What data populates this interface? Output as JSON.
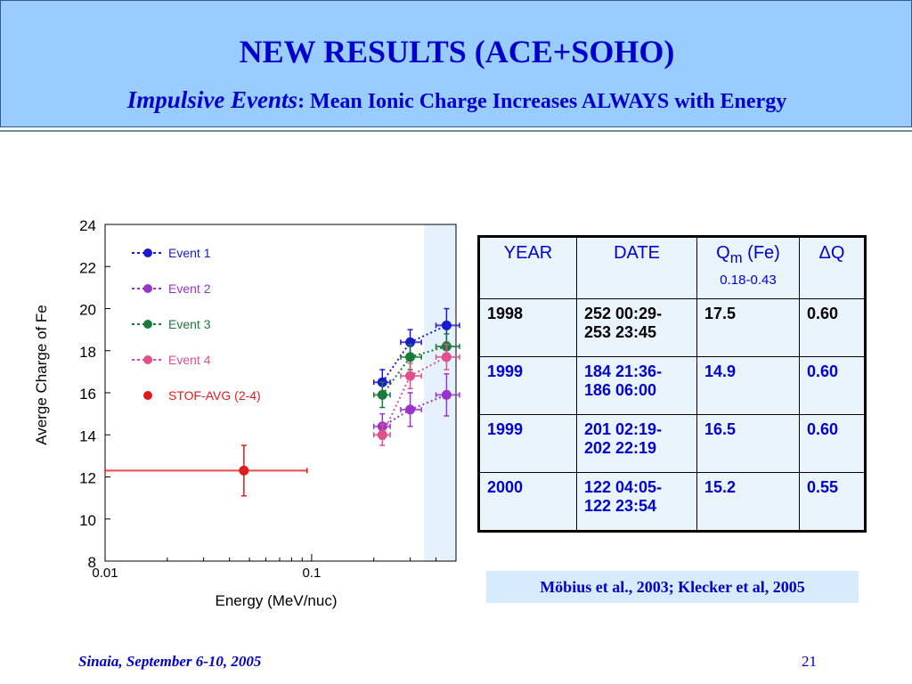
{
  "slide": {
    "title": "NEW RESULTS (ACE+SOHO)",
    "subtitle_italic": "Impulsive Events",
    "subtitle_rest": ": Mean Ionic Charge Increases ALWAYS with Energy",
    "reference": "Möbius et al., 2003; Klecker et al, 2005",
    "footer_left": "Sinaia, September 6-10, 2005",
    "page_number": "21"
  },
  "colors": {
    "header_bg": "#99ccff",
    "title": "#0000cc",
    "event1": "#1a1acc",
    "event2": "#9933cc",
    "event3": "#1a7a3a",
    "event4": "#e0508a",
    "stof": "#e31a1c",
    "table_bg": "#eaf4fd",
    "highlight_band": "#e6f2fb"
  },
  "table": {
    "headers": {
      "year": "YEAR",
      "date": "DATE",
      "qm": "Q",
      "qm_sub": "m",
      "qm_suffix": " (Fe)",
      "qm_range": "0.18-0.43",
      "dq": "ΔQ"
    },
    "rows": [
      {
        "year": "1998",
        "date_line1": "252 00:29-",
        "date_line2": "253 23:45",
        "qm": "17.5",
        "dq": "0.60"
      },
      {
        "year": "1999",
        "date_line1": "184 21:36-",
        "date_line2": "186 06:00",
        "qm": "14.9",
        "dq": "0.60"
      },
      {
        "year": "1999",
        "date_line1": "201 02:19-",
        "date_line2": "202 22:19",
        "qm": "16.5",
        "dq": "0.60"
      },
      {
        "year": "2000",
        "date_line1": "122 04:05-",
        "date_line2": "122 23:54",
        "qm": "15.2",
        "dq": "0.55"
      }
    ]
  },
  "chart_data": {
    "type": "scatter",
    "title": "",
    "xlabel": "Energy (MeV/nuc)",
    "ylabel": "Averge Charge of Fe",
    "x_scale": "log",
    "xlim": [
      0.01,
      0.5
    ],
    "ylim": [
      8,
      24
    ],
    "x_ticks": [
      "0.01",
      "0.1"
    ],
    "y_ticks": [
      "8",
      "10",
      "12",
      "14",
      "16",
      "18",
      "20",
      "22",
      "24"
    ],
    "shaded_x_range": [
      0.35,
      0.5
    ],
    "legend_position": "top-left",
    "series": [
      {
        "name": "Event 1",
        "color": "#1a1acc",
        "connected": true,
        "points": [
          {
            "x": 0.22,
            "y": 16.5,
            "yerr": 0.6,
            "xerr_lo": 0.02,
            "xerr_hi": 0.02
          },
          {
            "x": 0.3,
            "y": 18.4,
            "yerr": 0.6,
            "xerr_lo": 0.03,
            "xerr_hi": 0.04
          },
          {
            "x": 0.45,
            "y": 19.2,
            "yerr": 0.8,
            "xerr_lo": 0.05,
            "xerr_hi": 0.07
          }
        ]
      },
      {
        "name": "Event 2",
        "color": "#9933cc",
        "connected": true,
        "points": [
          {
            "x": 0.22,
            "y": 14.4,
            "yerr": 0.6,
            "xerr_lo": 0.02,
            "xerr_hi": 0.02
          },
          {
            "x": 0.3,
            "y": 15.2,
            "yerr": 0.8,
            "xerr_lo": 0.03,
            "xerr_hi": 0.04
          },
          {
            "x": 0.45,
            "y": 15.9,
            "yerr": 1.0,
            "xerr_lo": 0.05,
            "xerr_hi": 0.07
          }
        ]
      },
      {
        "name": "Event 3",
        "color": "#1a7a3a",
        "connected": true,
        "points": [
          {
            "x": 0.22,
            "y": 15.9,
            "yerr": 0.6,
            "xerr_lo": 0.02,
            "xerr_hi": 0.02
          },
          {
            "x": 0.3,
            "y": 17.7,
            "yerr": 0.6,
            "xerr_lo": 0.03,
            "xerr_hi": 0.04
          },
          {
            "x": 0.45,
            "y": 18.2,
            "yerr": 0.6,
            "xerr_lo": 0.05,
            "xerr_hi": 0.07
          }
        ]
      },
      {
        "name": "Event 4",
        "color": "#e0508a",
        "connected": true,
        "points": [
          {
            "x": 0.22,
            "y": 14.0,
            "yerr": 0.5,
            "xerr_lo": 0.02,
            "xerr_hi": 0.02
          },
          {
            "x": 0.3,
            "y": 16.8,
            "yerr": 0.6,
            "xerr_lo": 0.03,
            "xerr_hi": 0.04
          },
          {
            "x": 0.45,
            "y": 17.7,
            "yerr": 0.6,
            "xerr_lo": 0.05,
            "xerr_hi": 0.07
          }
        ]
      },
      {
        "name": "STOF-AVG (2-4)",
        "color": "#e31a1c",
        "connected": false,
        "points": [
          {
            "x": 0.047,
            "y": 12.3,
            "yerr": 1.2,
            "xerr_lo": 0.037,
            "xerr_hi": 0.048
          }
        ]
      }
    ]
  }
}
